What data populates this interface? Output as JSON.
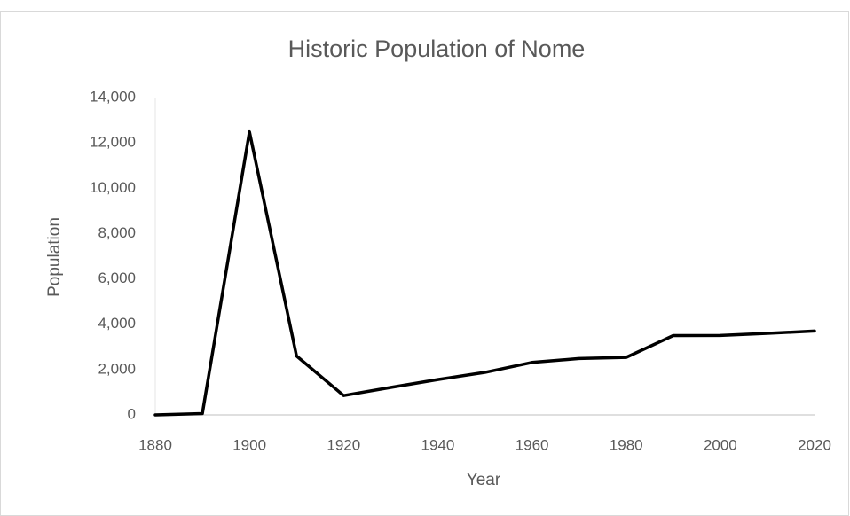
{
  "chart_data": {
    "type": "line",
    "title": "Historic Population of Nome",
    "x_label": "Year",
    "y_label": "Population",
    "x": [
      1880,
      1890,
      1900,
      1910,
      1920,
      1930,
      1940,
      1950,
      1960,
      1970,
      1980,
      1990,
      2000,
      2010,
      2020
    ],
    "values": [
      0,
      60,
      12488,
      2600,
      852,
      1213,
      1559,
      1876,
      2316,
      2488,
      2537,
      3500,
      3505,
      3598,
      3699
    ],
    "color": "#000000",
    "xlim": [
      1880,
      2020
    ],
    "xticks": [
      1880,
      1900,
      1920,
      1940,
      1960,
      1980,
      2000,
      2020
    ],
    "ylim": [
      0,
      14000
    ],
    "yticks": [
      0,
      {
        "value": 2000,
        "label": "2,000"
      },
      {
        "value": 4000,
        "label": "4,000"
      },
      {
        "value": 6000,
        "label": "6,000"
      },
      {
        "value": 8000,
        "label": "8,000"
      },
      {
        "value": 10000,
        "label": "10,000"
      },
      {
        "value": 12000,
        "label": "12,000"
      },
      {
        "value": 14000,
        "label": "14,000"
      }
    ],
    "grid": false
  }
}
